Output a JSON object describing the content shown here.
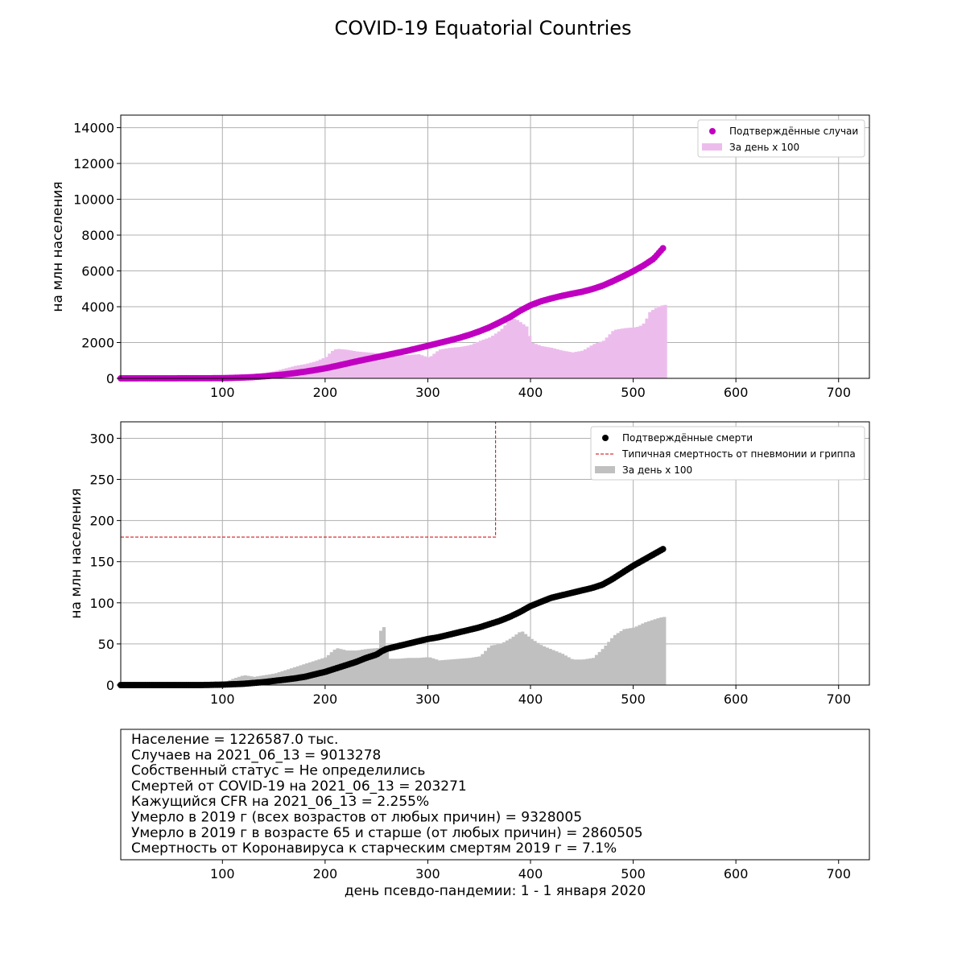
{
  "figure": {
    "title": "COVID-19 Equatorial Countries",
    "xlabel": "день псевдо-пандемии: 1 - 1 января 2020"
  },
  "colors": {
    "cases_point": "#c000c0",
    "cases_bar": "#ecbdec",
    "deaths_point": "#000000",
    "deaths_bar": "#c0c0c0",
    "reference_line": "#d00000",
    "grid": "#b0b0b0"
  },
  "chart_data": [
    {
      "type": "scatter",
      "ylabel": "на млн населения",
      "xlim": [
        1,
        730
      ],
      "ylim": [
        0,
        14700
      ],
      "xticks": [
        100,
        200,
        300,
        400,
        500,
        600,
        700
      ],
      "yticks": [
        0,
        2000,
        4000,
        6000,
        8000,
        10000,
        12000,
        14000
      ],
      "grid": true,
      "legend_position": "top-right",
      "legend": [
        "Подтверждённые случаи",
        "За день x 100"
      ],
      "series": [
        {
          "name": "Подтверждённые случаи",
          "kind": "points",
          "x": [
            1,
            50,
            100,
            110,
            120,
            130,
            140,
            150,
            160,
            170,
            180,
            190,
            200,
            210,
            220,
            230,
            240,
            250,
            260,
            270,
            280,
            290,
            300,
            310,
            320,
            330,
            340,
            350,
            360,
            370,
            380,
            390,
            400,
            410,
            420,
            430,
            440,
            450,
            460,
            470,
            480,
            490,
            500,
            510,
            520,
            530
          ],
          "y": [
            0,
            2,
            10,
            25,
            45,
            70,
            110,
            160,
            220,
            290,
            370,
            460,
            560,
            680,
            810,
            940,
            1060,
            1180,
            1300,
            1420,
            1540,
            1680,
            1820,
            1960,
            2100,
            2250,
            2420,
            2620,
            2850,
            3130,
            3420,
            3780,
            4080,
            4300,
            4460,
            4600,
            4720,
            4830,
            4980,
            5170,
            5420,
            5690,
            5980,
            6300,
            6680,
            7330
          ]
        },
        {
          "name": "За день x 100",
          "kind": "bars",
          "x": [
            110,
            120,
            130,
            140,
            150,
            160,
            170,
            180,
            190,
            200,
            205,
            210,
            220,
            230,
            240,
            250,
            260,
            270,
            280,
            290,
            300,
            310,
            320,
            330,
            340,
            350,
            360,
            370,
            380,
            385,
            390,
            395,
            400,
            410,
            420,
            430,
            440,
            450,
            460,
            470,
            480,
            490,
            500,
            505,
            510,
            515,
            520,
            525,
            530
          ],
          "y": [
            100,
            200,
            250,
            300,
            400,
            550,
            700,
            800,
            950,
            1200,
            1500,
            1650,
            1600,
            1500,
            1450,
            1400,
            1300,
            1280,
            1300,
            1350,
            1150,
            1600,
            1700,
            1750,
            1850,
            2100,
            2300,
            2700,
            3350,
            3300,
            3100,
            2900,
            2000,
            1800,
            1700,
            1550,
            1450,
            1550,
            1900,
            2100,
            2700,
            2800,
            2850,
            2900,
            3100,
            3700,
            3900,
            4050,
            4100
          ]
        }
      ]
    },
    {
      "type": "scatter",
      "ylabel": "на млн населения",
      "xlim": [
        1,
        730
      ],
      "ylim": [
        0,
        320
      ],
      "xticks": [
        100,
        200,
        300,
        400,
        500,
        600,
        700
      ],
      "yticks": [
        0,
        50,
        100,
        150,
        200,
        250,
        300
      ],
      "grid": true,
      "legend_position": "top-right",
      "legend": [
        "Подтверждённые смерти",
        "Типичная смертность от пневмонии и гриппа",
        "За день x 100"
      ],
      "series": [
        {
          "name": "Подтверждённые смерти",
          "kind": "points",
          "x": [
            1,
            80,
            100,
            110,
            120,
            130,
            140,
            150,
            160,
            170,
            180,
            190,
            200,
            210,
            220,
            230,
            240,
            250,
            255,
            260,
            270,
            280,
            290,
            300,
            310,
            320,
            330,
            340,
            350,
            360,
            370,
            380,
            390,
            400,
            410,
            420,
            430,
            440,
            450,
            460,
            470,
            480,
            490,
            500,
            510,
            520,
            530
          ],
          "y": [
            0,
            0,
            0.5,
            1,
            1.5,
            2.5,
            3.5,
            5,
            6.5,
            8,
            10,
            13,
            16,
            20,
            24,
            28,
            33,
            37,
            41,
            44,
            47,
            50,
            53,
            56,
            58,
            61,
            64,
            67,
            70,
            74,
            78,
            83,
            89,
            96,
            101,
            106,
            109,
            112,
            115,
            118,
            122,
            129,
            137,
            145,
            152,
            159,
            166
          ]
        },
        {
          "name": "Типичная смертность от пневмонии и гриппа",
          "kind": "step-line",
          "x": [
            1,
            366,
            366
          ],
          "y": [
            180,
            180,
            320
          ]
        },
        {
          "name": "За день x 100",
          "kind": "bars",
          "x": [
            100,
            110,
            120,
            130,
            140,
            150,
            160,
            170,
            180,
            190,
            200,
            205,
            210,
            220,
            230,
            240,
            250,
            255,
            260,
            270,
            280,
            290,
            300,
            310,
            320,
            330,
            340,
            350,
            360,
            370,
            380,
            390,
            400,
            410,
            420,
            430,
            440,
            450,
            460,
            470,
            480,
            490,
            500,
            505,
            510,
            515,
            520,
            525,
            530
          ],
          "y": [
            3,
            8,
            12,
            10,
            12,
            14,
            18,
            22,
            26,
            30,
            34,
            40,
            45,
            42,
            42,
            44,
            45,
            80,
            32,
            32,
            33,
            33,
            34,
            30,
            31,
            32,
            33,
            35,
            48,
            50,
            57,
            66,
            56,
            48,
            43,
            38,
            31,
            31,
            33,
            45,
            60,
            68,
            70,
            73,
            76,
            78,
            80,
            82,
            83
          ]
        }
      ]
    }
  ],
  "info": {
    "lines": [
      "Население = 1226587.0 тыс.",
      "Случаев на 2021_06_13 = 9013278",
      "Собственный статус = Не определились",
      "Смертей от COVID-19 на 2021_06_13 = 203271",
      "Кажущийся CFR на 2021_06_13 = 2.255%",
      "Умерло в 2019 г (всех возрастов от любых причин) = 9328005",
      "Умерло в 2019 г в возрасте 65 и старше (от любых причин) = 2860505",
      "Смертность от Коронавируса к старческим смертям 2019 г = 7.1%"
    ],
    "xticks": [
      100,
      200,
      300,
      400,
      500,
      600,
      700
    ]
  }
}
